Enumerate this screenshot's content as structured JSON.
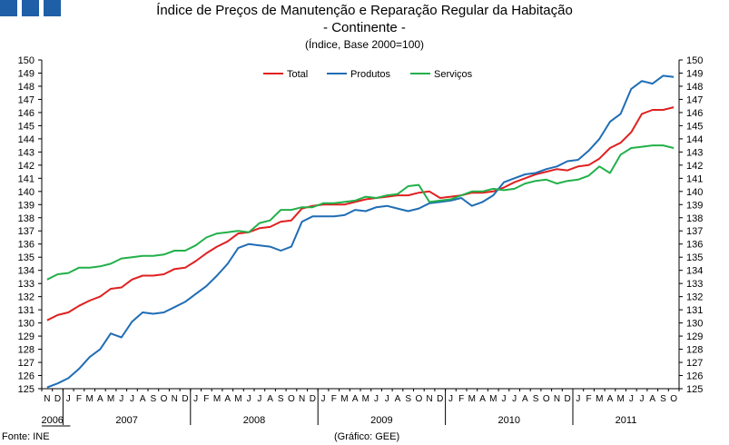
{
  "header": {
    "title_line1": "Índice de Preços de Manutenção e Reparação Regular da Habitação",
    "title_line2": "- Continente -",
    "subtitle": "(Índice, Base 2000=100)"
  },
  "footer": {
    "source": "Fonte: INE",
    "credit": "(Gráfico: GEE)"
  },
  "colors": {
    "logo": "#1f5fa8",
    "total": "#e02020",
    "produtos": "#1f6db5",
    "servicos": "#22b04a",
    "axis": "#000000"
  },
  "chart_data": {
    "type": "line",
    "title": "Índice de Preços de Manutenção e Reparação Regular da Habitação - Continente -",
    "ylabel": "(Índice, Base 2000=100)",
    "ylim": [
      125,
      150
    ],
    "yticks": [
      125,
      126,
      127,
      128,
      129,
      130,
      131,
      132,
      133,
      134,
      135,
      136,
      137,
      138,
      139,
      140,
      141,
      142,
      143,
      144,
      145,
      146,
      147,
      148,
      149,
      150
    ],
    "month_labels": [
      "N",
      "D",
      "J",
      "F",
      "M",
      "A",
      "M",
      "J",
      "J",
      "A",
      "S",
      "O",
      "N",
      "D",
      "J",
      "F",
      "M",
      "A",
      "M",
      "J",
      "J",
      "A",
      "S",
      "O",
      "N",
      "D",
      "J",
      "F",
      "M",
      "A",
      "M",
      "J",
      "J",
      "A",
      "S",
      "O",
      "N",
      "D",
      "J",
      "F",
      "M",
      "A",
      "M",
      "J",
      "J",
      "A",
      "S",
      "O",
      "N",
      "D",
      "J",
      "F",
      "M",
      "A",
      "M",
      "J",
      "J",
      "A",
      "S",
      "O"
    ],
    "years": [
      {
        "label": "2006",
        "start": 0,
        "count": 2
      },
      {
        "label": "2007",
        "start": 2,
        "count": 12
      },
      {
        "label": "2008",
        "start": 14,
        "count": 12
      },
      {
        "label": "2009",
        "start": 26,
        "count": 12
      },
      {
        "label": "2010",
        "start": 38,
        "count": 12
      },
      {
        "label": "2011",
        "start": 50,
        "count": 10
      }
    ],
    "legend_position": "top-center",
    "series": [
      {
        "name": "Total",
        "color": "#e02020",
        "values": [
          130.2,
          130.6,
          130.8,
          131.3,
          131.7,
          132.0,
          132.6,
          132.7,
          133.3,
          133.6,
          133.6,
          133.7,
          134.1,
          134.2,
          134.7,
          135.3,
          135.8,
          136.2,
          136.8,
          136.9,
          137.2,
          137.3,
          137.7,
          137.8,
          138.7,
          138.9,
          139.0,
          139.0,
          139.0,
          139.2,
          139.4,
          139.5,
          139.6,
          139.7,
          139.7,
          139.9,
          140.0,
          139.5,
          139.6,
          139.7,
          139.9,
          139.9,
          140.0,
          140.3,
          140.7,
          141.0,
          141.3,
          141.5,
          141.7,
          141.6,
          141.9,
          142.0,
          142.5,
          143.3,
          143.7,
          144.5,
          145.9,
          146.2,
          146.2,
          146.4
        ]
      },
      {
        "name": "Produtos",
        "color": "#1f6db5",
        "values": [
          125.1,
          125.4,
          125.8,
          126.5,
          127.4,
          128.0,
          129.2,
          128.9,
          130.1,
          130.8,
          130.7,
          130.8,
          131.2,
          131.6,
          132.2,
          132.8,
          133.6,
          134.5,
          135.7,
          136.0,
          135.9,
          135.8,
          135.5,
          135.8,
          137.7,
          138.1,
          138.1,
          138.1,
          138.2,
          138.6,
          138.5,
          138.8,
          138.9,
          138.7,
          138.5,
          138.7,
          139.1,
          139.2,
          139.3,
          139.5,
          138.9,
          139.2,
          139.7,
          140.7,
          141.0,
          141.3,
          141.4,
          141.7,
          141.9,
          142.3,
          142.4,
          143.1,
          144.0,
          145.3,
          145.9,
          147.8,
          148.4,
          148.2,
          148.8,
          148.7
        ]
      },
      {
        "name": "Serviços",
        "color": "#22b04a",
        "values": [
          133.3,
          133.7,
          133.8,
          134.2,
          134.2,
          134.3,
          134.5,
          134.9,
          135.0,
          135.1,
          135.1,
          135.2,
          135.5,
          135.5,
          135.9,
          136.5,
          136.8,
          136.9,
          137.0,
          136.9,
          137.6,
          137.8,
          138.6,
          138.6,
          138.8,
          138.8,
          139.1,
          139.1,
          139.2,
          139.3,
          139.6,
          139.5,
          139.7,
          139.8,
          140.4,
          140.5,
          139.2,
          139.3,
          139.4,
          139.7,
          140.0,
          140.0,
          140.2,
          140.1,
          140.2,
          140.6,
          140.8,
          140.9,
          140.6,
          140.8,
          140.9,
          141.2,
          141.9,
          141.4,
          142.8,
          143.3,
          143.4,
          143.5,
          143.5,
          143.3
        ]
      }
    ]
  }
}
